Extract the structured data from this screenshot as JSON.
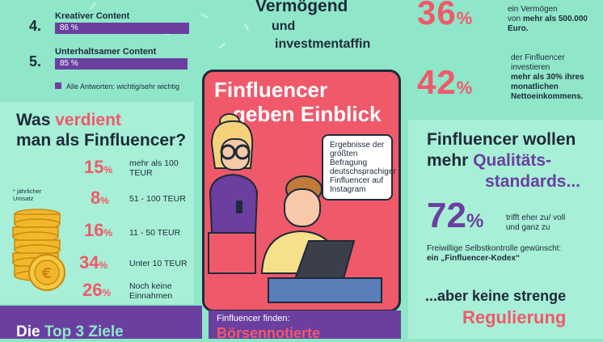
{
  "ranking": {
    "items": [
      {
        "num": "4.",
        "label": "Kreativer Content",
        "value": "86 %"
      },
      {
        "num": "5.",
        "label": "Unterhaltsamer Content",
        "value": "85 %"
      }
    ],
    "legend": "Alle Antworten: wichtig/sehr wichtig"
  },
  "earn": {
    "title_1": "Was ",
    "title_accent": "verdient",
    "title_2": "man als Finfluencer?",
    "note": "* jährlicher Umsatz",
    "rows": [
      {
        "pct": "15",
        "label": "mehr als 100 TEUR"
      },
      {
        "pct": "8",
        "label": "51 - 100 TEUR"
      },
      {
        "pct": "16",
        "label": "11 - 50 TEUR"
      },
      {
        "pct": "34",
        "label": "Unter 10 TEUR"
      },
      {
        "pct": "26",
        "label": "Noch keine Einnahmen"
      }
    ],
    "pct_sign": "%"
  },
  "bottom_left": {
    "text_1": "Die ",
    "text_accent": "Top 3 Ziele"
  },
  "card": {
    "title_1": "Finfluencer",
    "title_2": "geben Einblick",
    "bubble": "Ergebnisse der größten Befragung deutschsprachiger Finfluencer auf Instagram",
    "footer_1": "Finfluencer finden:",
    "footer_2": "Börsennotierte"
  },
  "wealth": {
    "title_1": "Vermögend",
    "title_2": "und",
    "title_3": "investmentaffin",
    "stat1_pct": "36",
    "stat1_text_1": "ein Vermögen",
    "stat1_text_2": "von ",
    "stat1_text_bold": "mehr als 500.000 Euro.",
    "stat2_pct": "42",
    "stat2_text_1": "der Finfluencer",
    "stat2_text_2": "investieren",
    "stat2_text_bold": "mehr als 30% ihres monatlichen Nettoeinkommens.",
    "pct_sign": "%"
  },
  "quality": {
    "title_1": "Finfluencer wollen",
    "title_2": "mehr ",
    "title_accent": "Qualitäts-",
    "title_3": "standards...",
    "pct": "72",
    "pct_sign": "%",
    "pct_text": "trifft eher zu/ voll und ganz zu",
    "self_control": "Freiwillige Selbstkontrolle gewünscht:",
    "kodex": "ein „Finfluencer-Kodex“",
    "bottom_1": "...aber keine strenge",
    "bottom_accent": "Regulierung"
  },
  "colors": {
    "mint": "#8fe6c9",
    "coral": "#f0596a",
    "purple": "#6a3fa0",
    "navy": "#1e2a3a"
  }
}
